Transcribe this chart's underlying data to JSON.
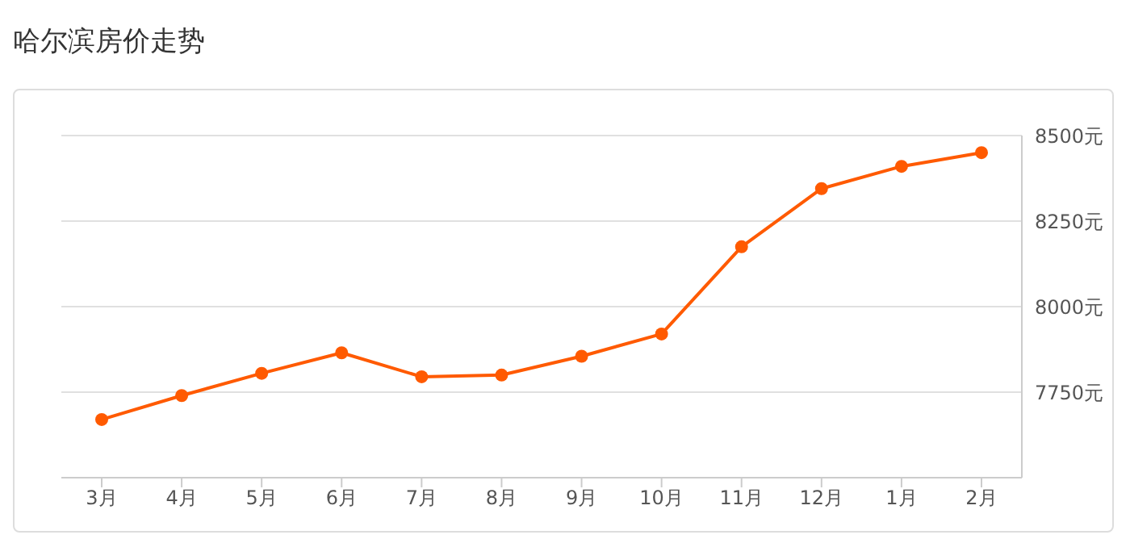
{
  "chart_data": {
    "type": "line",
    "title": "哈尔滨房价走势",
    "categories": [
      "3月",
      "4月",
      "5月",
      "6月",
      "7月",
      "8月",
      "9月",
      "10月",
      "11月",
      "12月",
      "1月",
      "2月"
    ],
    "series": [
      {
        "color": "#ff5a00",
        "values": [
          7670,
          7740,
          7805,
          7865,
          7795,
          7800,
          7855,
          7920,
          8175,
          8345,
          8410,
          8450
        ]
      }
    ],
    "ylim": [
      7500,
      8500
    ],
    "yticks": [
      {
        "value": 7750,
        "label": "7750元"
      },
      {
        "value": 8000,
        "label": "8000元"
      },
      {
        "value": 8250,
        "label": "8250元"
      },
      {
        "value": 8500,
        "label": "8500元"
      }
    ],
    "grid": "y",
    "marker": "circle",
    "line_style": "solid"
  }
}
